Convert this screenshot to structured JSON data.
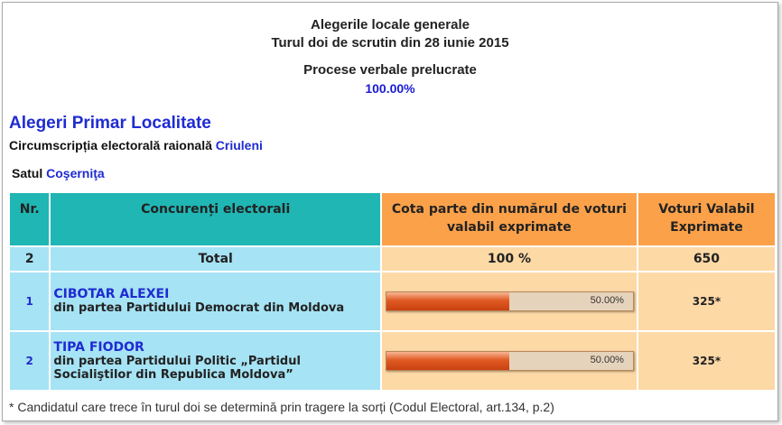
{
  "header": {
    "line1": "Alegerile locale generale",
    "line2": "Turul doi de scrutin din 28 iunie 2015",
    "line3": "Procese verbale prelucrate",
    "processed_pct": "100.00%"
  },
  "section": {
    "title": "Alegeri Primar Localitate",
    "circ_label": "Circumscripția electorală raională",
    "circ_value": "Criuleni",
    "sat_label": "Satul",
    "sat_value": "Coşerniţa"
  },
  "table": {
    "headers": [
      "Nr.",
      "Concurenți electorali",
      "Cota parte din numărul de voturi valabil exprimate",
      "Voturi Valabil Exprimate"
    ],
    "total": {
      "nr": "2",
      "label": "Total",
      "share": "100 %",
      "votes": "650"
    },
    "rows": [
      {
        "nr": "1",
        "name": "CIBOTAR ALEXEI",
        "party": "din partea Partidului Democrat din Moldova",
        "pct_label": "50.00%",
        "pct": 50,
        "votes": "325*"
      },
      {
        "nr": "2",
        "name": "TIPA FIODOR",
        "party": "din partea Partidului Politic „Partidul Socialiştilor din Republica Moldova”",
        "pct_label": "50.00%",
        "pct": 50,
        "votes": "325*"
      }
    ]
  },
  "colors": {
    "accent_blue": "#1f2bd2",
    "teal": "#1fb6b4",
    "orange": "#fba14a",
    "cyan": "#a6e3f4",
    "peach": "#fdd9a6",
    "bar": "#e05a24"
  },
  "footnote": "* Candidatul care trece în turul doi se determină prin tragere la sorți (Codul Electoral, art.134, p.2)"
}
